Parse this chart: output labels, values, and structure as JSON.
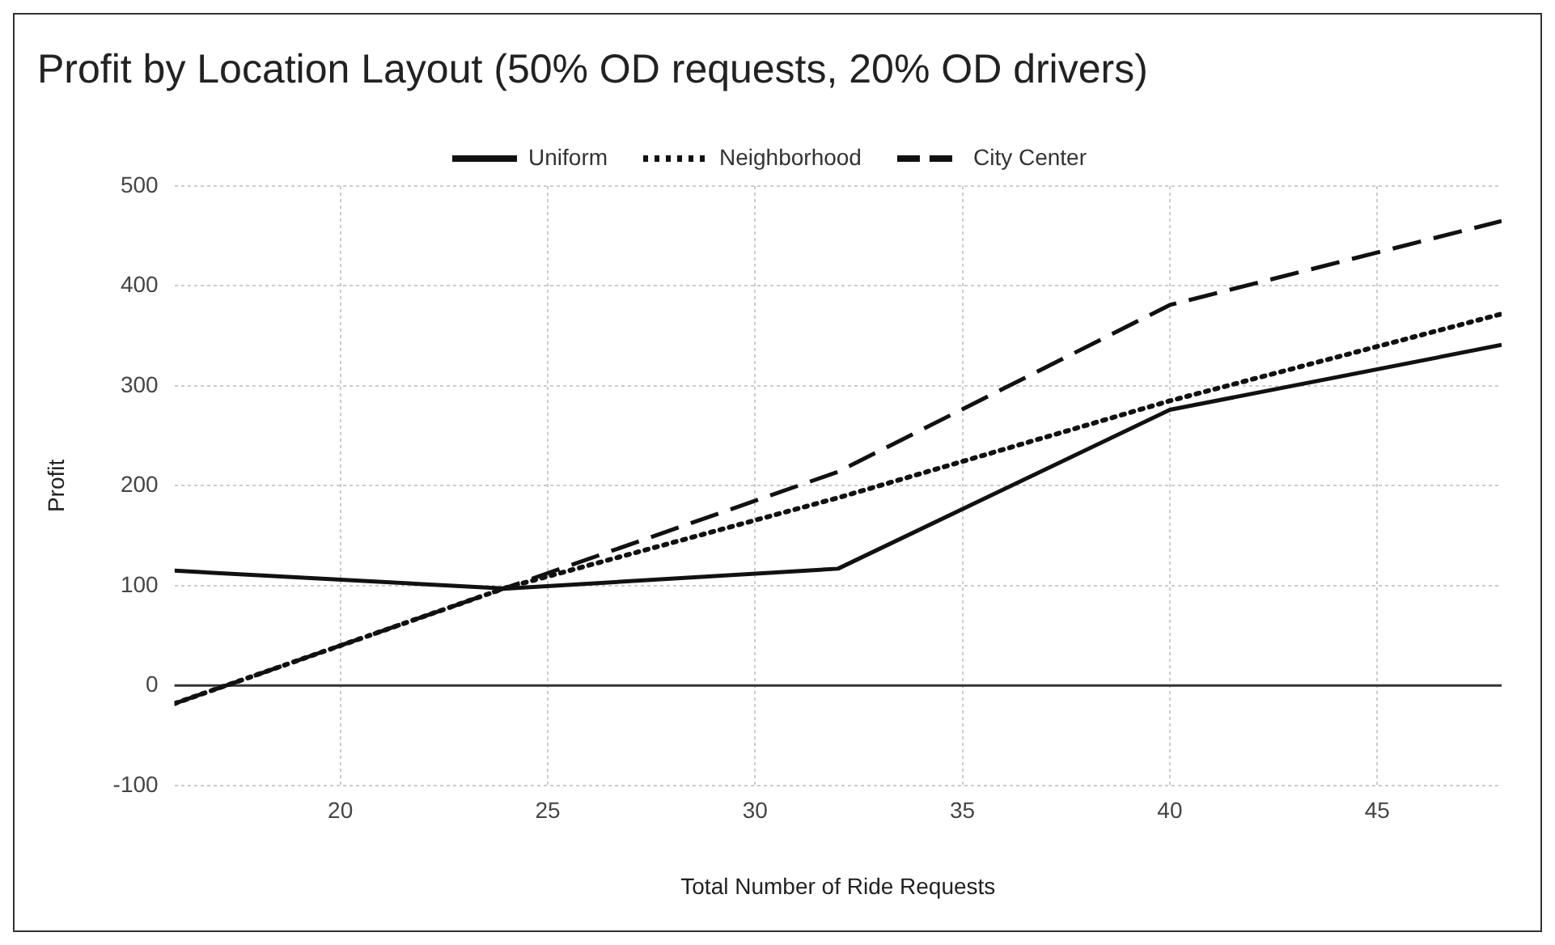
{
  "chart_data": {
    "type": "line",
    "title": "Profit by Location Layout (50% OD requests, 20% OD drivers)",
    "xlabel": "Total Number of Ride Requests",
    "ylabel": "Profit",
    "x": [
      16,
      24,
      32,
      40,
      48
    ],
    "series": [
      {
        "name": "Uniform",
        "color": "#111111",
        "line_style": "solid",
        "values": [
          115,
          97,
          117,
          276,
          341
        ]
      },
      {
        "name": "Neighborhood",
        "color": "#111111",
        "line_style": "dotted",
        "values": [
          -18,
          98,
          188,
          285,
          372
        ]
      },
      {
        "name": "City Center",
        "color": "#111111",
        "line_style": "dashed",
        "values": [
          -18,
          98,
          214,
          381,
          465
        ]
      }
    ],
    "xlim": [
      16,
      48
    ],
    "xticks": [
      20,
      25,
      30,
      35,
      40,
      45
    ],
    "ylim": [
      -100,
      500
    ],
    "yticks": [
      -100,
      0,
      100,
      200,
      300,
      400,
      500
    ],
    "ref_lines": [
      {
        "axis": "y",
        "value": 0,
        "color": "#333333"
      }
    ],
    "grid": true,
    "legend": "top",
    "marker": "none"
  }
}
